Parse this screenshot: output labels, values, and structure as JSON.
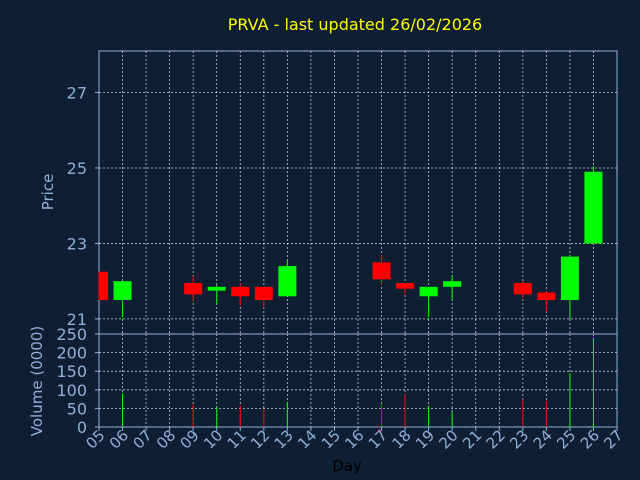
{
  "chart_data": {
    "type": "candlestick",
    "title": "PRVA - last updated 26/02/2026",
    "xlabel": "Day",
    "ylabel_price": "Price",
    "ylabel_volume": "Volume (0000)",
    "x_ticks": [
      "05",
      "06",
      "07",
      "08",
      "09",
      "10",
      "11",
      "12",
      "13",
      "14",
      "15",
      "16",
      "17",
      "18",
      "19",
      "20",
      "21",
      "22",
      "23",
      "24",
      "25",
      "26",
      "27"
    ],
    "price_ticks": [
      21,
      23,
      25,
      27
    ],
    "price_range": [
      20.6,
      28.1
    ],
    "volume_ticks": [
      0,
      50,
      100,
      150,
      200,
      250
    ],
    "volume_range": [
      0,
      250
    ],
    "grid": true,
    "colors": {
      "up": "#00ff00",
      "down": "#ff0000",
      "text": "#ffff00",
      "axis": "#8fb0d8",
      "grid": "#ffffff"
    },
    "candles": [
      {
        "day": "05",
        "open": 22.25,
        "close": 21.5,
        "high": 22.25,
        "low": 21.5,
        "volume": 0
      },
      {
        "day": "06",
        "open": 21.5,
        "close": 22.0,
        "high": 22.0,
        "low": 21.05,
        "volume": 90
      },
      {
        "day": "09",
        "open": 21.95,
        "close": 21.65,
        "high": 22.15,
        "low": 21.45,
        "volume": 60
      },
      {
        "day": "10",
        "open": 21.75,
        "close": 21.85,
        "high": 21.9,
        "low": 21.4,
        "volume": 55
      },
      {
        "day": "11",
        "open": 21.85,
        "close": 21.6,
        "high": 21.95,
        "low": 21.35,
        "volume": 58
      },
      {
        "day": "12",
        "open": 21.85,
        "close": 21.5,
        "high": 21.85,
        "low": 21.3,
        "volume": 48
      },
      {
        "day": "13",
        "open": 21.6,
        "close": 22.4,
        "high": 22.55,
        "low": 21.6,
        "volume": 68
      },
      {
        "day": "17",
        "open": 22.5,
        "close": 22.05,
        "high": 22.7,
        "low": 21.9,
        "volume": 60
      },
      {
        "day": "18",
        "open": 21.95,
        "close": 21.8,
        "high": 21.95,
        "low": 21.65,
        "volume": 88
      },
      {
        "day": "19",
        "open": 21.6,
        "close": 21.85,
        "high": 21.85,
        "low": 21.05,
        "volume": 58
      },
      {
        "day": "20",
        "open": 21.85,
        "close": 22.0,
        "high": 22.15,
        "low": 21.5,
        "volume": 40
      },
      {
        "day": "23",
        "open": 21.95,
        "close": 21.65,
        "high": 22.0,
        "low": 21.55,
        "volume": 75
      },
      {
        "day": "24",
        "open": 21.7,
        "close": 21.5,
        "high": 21.75,
        "low": 21.2,
        "volume": 70
      },
      {
        "day": "25",
        "open": 21.5,
        "close": 22.65,
        "high": 22.7,
        "low": 21.0,
        "volume": 145
      },
      {
        "day": "26",
        "open": 23.0,
        "close": 24.9,
        "high": 25.05,
        "low": 23.0,
        "volume": 240
      }
    ]
  }
}
